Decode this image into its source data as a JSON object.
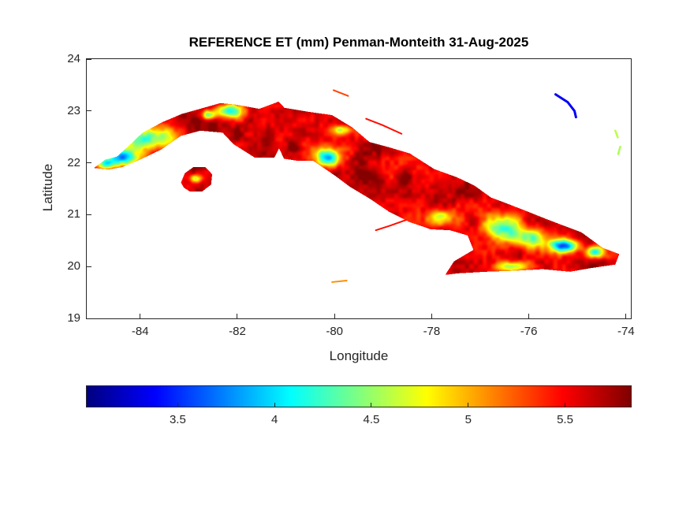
{
  "chart_data": {
    "type": "heatmap",
    "title": "REFERENCE ET (mm) Penman-Monteith 31-Aug-2025",
    "xlabel": "Longitude",
    "ylabel": "Latitude",
    "xlim": [
      -85.1,
      -73.9
    ],
    "ylim": [
      19,
      24
    ],
    "xticks": [
      -84,
      -82,
      -80,
      -78,
      -76,
      -74
    ],
    "yticks": [
      19,
      20,
      21,
      22,
      23,
      24
    ],
    "grid": false,
    "colormap": "jet",
    "axis_color": "#262626",
    "background_color": "#ffffff",
    "colorbar": {
      "orientation": "horizontal",
      "position": "bottom",
      "ticks": [
        3.5,
        4,
        4.5,
        5,
        5.5
      ],
      "cmin": 3.03,
      "cmax": 5.84
    },
    "field": {
      "base_value": 5.62,
      "noise": {
        "amplitude_coarse": 0.22,
        "scale_coarse": 3.5,
        "amplitude_fine": 0.12,
        "scale_fine": 11
      },
      "cool_patches": [
        {
          "lon": -84.38,
          "lat": 22.1,
          "rx": 0.32,
          "ry": 0.16,
          "value": 3.75
        },
        {
          "lon": -83.85,
          "lat": 22.48,
          "rx": 0.55,
          "ry": 0.22,
          "value": 4.15
        },
        {
          "lon": -84.68,
          "lat": 21.98,
          "rx": 0.18,
          "ry": 0.1,
          "value": 4.45
        },
        {
          "lon": -82.18,
          "lat": 23.0,
          "rx": 0.3,
          "ry": 0.13,
          "value": 4.05
        },
        {
          "lon": -82.6,
          "lat": 22.92,
          "rx": 0.15,
          "ry": 0.09,
          "value": 4.45
        },
        {
          "lon": -80.14,
          "lat": 22.1,
          "rx": 0.26,
          "ry": 0.17,
          "value": 3.8
        },
        {
          "lon": -79.85,
          "lat": 22.64,
          "rx": 0.18,
          "ry": 0.09,
          "value": 4.7
        },
        {
          "lon": -77.8,
          "lat": 20.95,
          "rx": 0.26,
          "ry": 0.16,
          "value": 4.55
        },
        {
          "lon": -76.55,
          "lat": 20.72,
          "rx": 0.4,
          "ry": 0.26,
          "value": 4.25
        },
        {
          "lon": -75.92,
          "lat": 20.55,
          "rx": 0.3,
          "ry": 0.18,
          "value": 4.35
        },
        {
          "lon": -75.28,
          "lat": 20.4,
          "rx": 0.28,
          "ry": 0.13,
          "value": 3.6
        },
        {
          "lon": -74.64,
          "lat": 20.28,
          "rx": 0.2,
          "ry": 0.11,
          "value": 4.2
        },
        {
          "lon": -76.3,
          "lat": 20.0,
          "rx": 0.34,
          "ry": 0.1,
          "value": 4.6
        },
        {
          "lon": -82.85,
          "lat": 21.7,
          "rx": 0.13,
          "ry": 0.08,
          "value": 4.55
        }
      ]
    },
    "land_polygons": {
      "cuba_main": [
        [
          -84.95,
          21.9
        ],
        [
          -84.72,
          22.06
        ],
        [
          -84.48,
          22.12
        ],
        [
          -84.22,
          22.34
        ],
        [
          -83.95,
          22.58
        ],
        [
          -83.55,
          22.78
        ],
        [
          -83.15,
          22.94
        ],
        [
          -82.73,
          23.05
        ],
        [
          -82.35,
          23.15
        ],
        [
          -82.02,
          23.12
        ],
        [
          -81.55,
          23.04
        ],
        [
          -81.15,
          23.18
        ],
        [
          -81.03,
          23.06
        ],
        [
          -80.58,
          22.99
        ],
        [
          -80.05,
          22.92
        ],
        [
          -79.63,
          22.68
        ],
        [
          -79.28,
          22.4
        ],
        [
          -78.88,
          22.3
        ],
        [
          -78.45,
          22.18
        ],
        [
          -77.95,
          21.88
        ],
        [
          -77.48,
          21.72
        ],
        [
          -77.12,
          21.56
        ],
        [
          -76.78,
          21.33
        ],
        [
          -76.52,
          21.24
        ],
        [
          -76.08,
          21.08
        ],
        [
          -75.68,
          20.93
        ],
        [
          -75.32,
          20.8
        ],
        [
          -74.92,
          20.66
        ],
        [
          -74.48,
          20.36
        ],
        [
          -74.14,
          20.24
        ],
        [
          -74.22,
          20.04
        ],
        [
          -74.72,
          19.97
        ],
        [
          -75.15,
          19.9
        ],
        [
          -75.72,
          19.95
        ],
        [
          -76.28,
          19.92
        ],
        [
          -76.88,
          19.9
        ],
        [
          -77.45,
          19.87
        ],
        [
          -77.72,
          19.84
        ],
        [
          -77.54,
          20.1
        ],
        [
          -77.14,
          20.32
        ],
        [
          -77.26,
          20.6
        ],
        [
          -77.62,
          20.7
        ],
        [
          -78.02,
          20.72
        ],
        [
          -78.46,
          20.86
        ],
        [
          -78.88,
          21.06
        ],
        [
          -79.26,
          21.3
        ],
        [
          -79.7,
          21.55
        ],
        [
          -80.0,
          21.76
        ],
        [
          -80.44,
          22.04
        ],
        [
          -80.76,
          22.04
        ],
        [
          -81.04,
          22.08
        ],
        [
          -81.14,
          22.28
        ],
        [
          -81.24,
          22.1
        ],
        [
          -81.64,
          22.1
        ],
        [
          -82.08,
          22.36
        ],
        [
          -82.3,
          22.58
        ],
        [
          -82.76,
          22.62
        ],
        [
          -83.16,
          22.52
        ],
        [
          -83.56,
          22.26
        ],
        [
          -83.96,
          22.08
        ],
        [
          -84.36,
          21.92
        ],
        [
          -84.65,
          21.87
        ]
      ],
      "isla_juventud": [
        [
          -83.16,
          21.62
        ],
        [
          -83.08,
          21.8
        ],
        [
          -82.9,
          21.92
        ],
        [
          -82.66,
          21.92
        ],
        [
          -82.52,
          21.78
        ],
        [
          -82.54,
          21.58
        ],
        [
          -82.72,
          21.45
        ],
        [
          -82.98,
          21.45
        ],
        [
          -83.1,
          21.52
        ]
      ]
    },
    "islets": [
      {
        "name": "north-coast-cays",
        "points": [
          [
            -79.35,
            22.85
          ],
          [
            -79.02,
            22.73
          ],
          [
            -78.62,
            22.56
          ]
        ],
        "value": 5.45,
        "width": 2
      },
      {
        "name": "cay-sal-cays",
        "points": [
          [
            -80.02,
            23.4
          ],
          [
            -79.72,
            23.29
          ]
        ],
        "value": 5.3,
        "width": 2
      },
      {
        "name": "southern-cays",
        "points": [
          [
            -79.15,
            20.7
          ],
          [
            -78.85,
            20.79
          ],
          [
            -78.52,
            20.9
          ]
        ],
        "value": 5.45,
        "width": 2
      },
      {
        "name": "cayman-cays",
        "points": [
          [
            -80.05,
            19.7
          ],
          [
            -79.75,
            19.73
          ]
        ],
        "value": 5.1,
        "width": 2
      },
      {
        "name": "bahamas-islet-blue",
        "points": [
          [
            -75.45,
            23.32
          ],
          [
            -75.2,
            23.17
          ],
          [
            -75.06,
            23.0
          ],
          [
            -75.03,
            22.88
          ]
        ],
        "value": 3.35,
        "width": 3
      },
      {
        "name": "bahamas-islet-green-1",
        "points": [
          [
            -74.22,
            22.62
          ],
          [
            -74.17,
            22.49
          ]
        ],
        "value": 4.6,
        "width": 2.5
      },
      {
        "name": "bahamas-islet-green-2",
        "points": [
          [
            -74.12,
            22.31
          ],
          [
            -74.16,
            22.17
          ]
        ],
        "value": 4.55,
        "width": 2.5
      }
    ]
  }
}
